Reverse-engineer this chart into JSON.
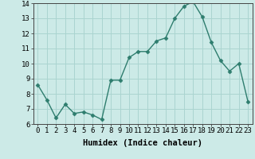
{
  "x": [
    0,
    1,
    2,
    3,
    4,
    5,
    6,
    7,
    8,
    9,
    10,
    11,
    12,
    13,
    14,
    15,
    16,
    17,
    18,
    19,
    20,
    21,
    22,
    23
  ],
  "y": [
    8.6,
    7.6,
    6.4,
    7.3,
    6.7,
    6.8,
    6.6,
    6.3,
    8.9,
    8.9,
    10.4,
    10.8,
    10.8,
    11.5,
    11.7,
    13.0,
    13.8,
    14.1,
    13.1,
    11.4,
    10.2,
    9.5,
    10.0,
    7.5
  ],
  "line_color": "#2e7d6e",
  "marker": "D",
  "marker_size": 2.5,
  "bg_color": "#cceae7",
  "grid_color": "#aad4d0",
  "xlabel": "Humidex (Indice chaleur)",
  "ylim": [
    6,
    14
  ],
  "xlim": [
    -0.5,
    23.5
  ],
  "yticks": [
    6,
    7,
    8,
    9,
    10,
    11,
    12,
    13,
    14
  ],
  "xticks": [
    0,
    1,
    2,
    3,
    4,
    5,
    6,
    7,
    8,
    9,
    10,
    11,
    12,
    13,
    14,
    15,
    16,
    17,
    18,
    19,
    20,
    21,
    22,
    23
  ],
  "xlabel_fontsize": 7.5,
  "tick_fontsize": 6.5,
  "linewidth": 1.0
}
